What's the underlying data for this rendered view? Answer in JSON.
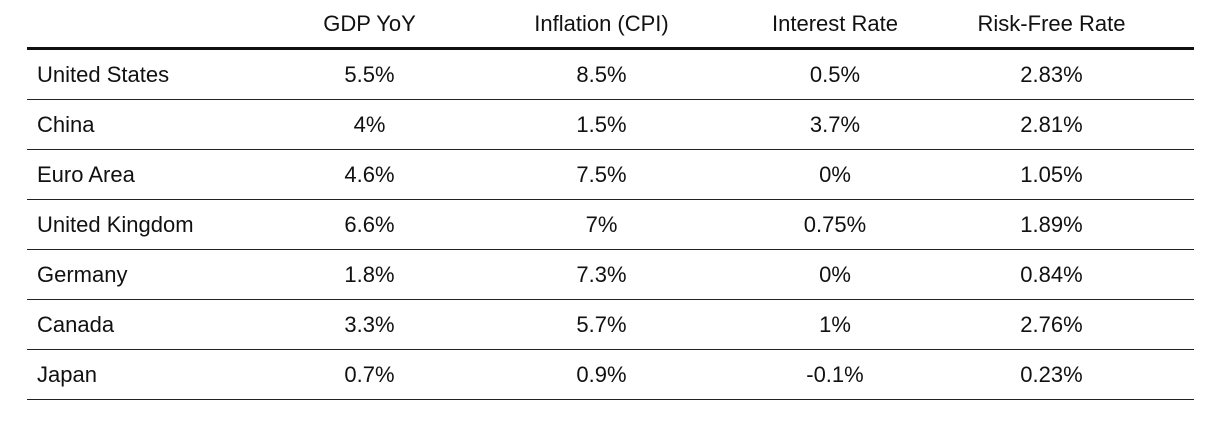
{
  "table": {
    "columns": [
      "",
      "GDP YoY",
      "Inflation (CPI)",
      "Interest Rate",
      "Risk-Free Rate"
    ],
    "rows": [
      [
        "United States",
        "5.5%",
        "8.5%",
        "0.5%",
        "2.83%"
      ],
      [
        "China",
        "4%",
        "1.5%",
        "3.7%",
        "2.81%"
      ],
      [
        "Euro Area",
        "4.6%",
        "7.5%",
        "0%",
        "1.05%"
      ],
      [
        "United Kingdom",
        "6.6%",
        "7%",
        "0.75%",
        "1.89%"
      ],
      [
        "Germany",
        "1.8%",
        "7.3%",
        "0%",
        "0.84%"
      ],
      [
        "Canada",
        "3.3%",
        "5.7%",
        "1%",
        "2.76%"
      ],
      [
        "Japan",
        "0.7%",
        "0.9%",
        "-0.1%",
        "0.23%"
      ]
    ]
  }
}
